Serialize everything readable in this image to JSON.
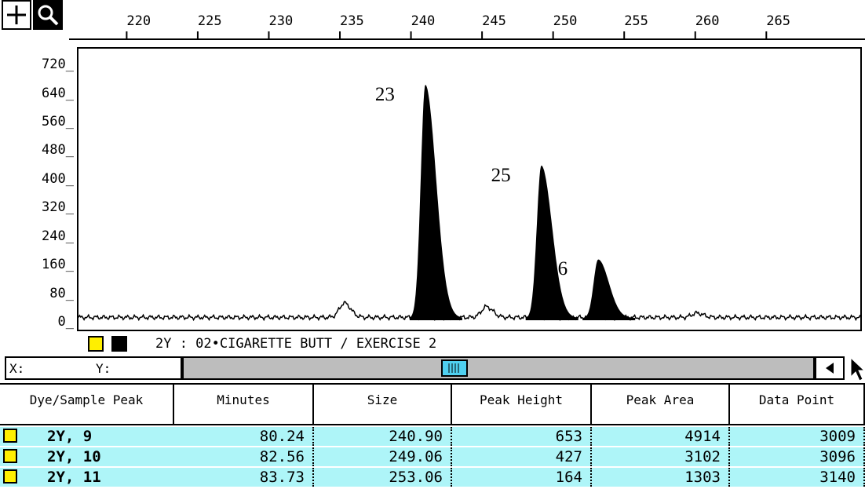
{
  "toolbar": {
    "crosshair_tool": "crosshair-icon",
    "zoom_tool": "magnifier-icon"
  },
  "chart_data": {
    "type": "line",
    "x_ticks": [
      "220",
      "225",
      "230",
      "235",
      "240",
      "245",
      "250",
      "255",
      "260",
      "265"
    ],
    "y_ticks": [
      "720",
      "640",
      "560",
      "480",
      "400",
      "320",
      "240",
      "160",
      "80",
      "0"
    ],
    "xlim": [
      216.5,
      271.5
    ],
    "ylim": [
      0,
      760
    ],
    "peaks": [
      {
        "label": "23",
        "x": 240.9,
        "height": 653
      },
      {
        "label": "25",
        "x": 249.06,
        "height": 427
      },
      {
        "label": "26",
        "x": 253.06,
        "height": 164
      }
    ],
    "minor_bumps": [
      {
        "x": 235.2,
        "height": 40
      },
      {
        "x": 245.2,
        "height": 30
      },
      {
        "x": 260.0,
        "height": 12
      }
    ],
    "fill_color": "#000000"
  },
  "legend": {
    "swatch_color": "#ffef00",
    "sample_title": "2Y : 02•CIGARETTE BUTT / EXERCISE 2"
  },
  "coords": {
    "x_label": "X:",
    "y_label": "Y:"
  },
  "table": {
    "headers": [
      "Dye/Sample Peak",
      "Minutes",
      "Size",
      "Peak Height",
      "Peak Area",
      "Data Point"
    ],
    "rows": [
      [
        "2Y, 9",
        "80.24",
        "240.90",
        "653",
        "4914",
        "3009"
      ],
      [
        "2Y, 10",
        "82.56",
        "249.06",
        "427",
        "3102",
        "3096"
      ],
      [
        "2Y, 11",
        "83.73",
        "253.06",
        "164",
        "1303",
        "3140"
      ]
    ],
    "row_color": "#aef5f8"
  }
}
